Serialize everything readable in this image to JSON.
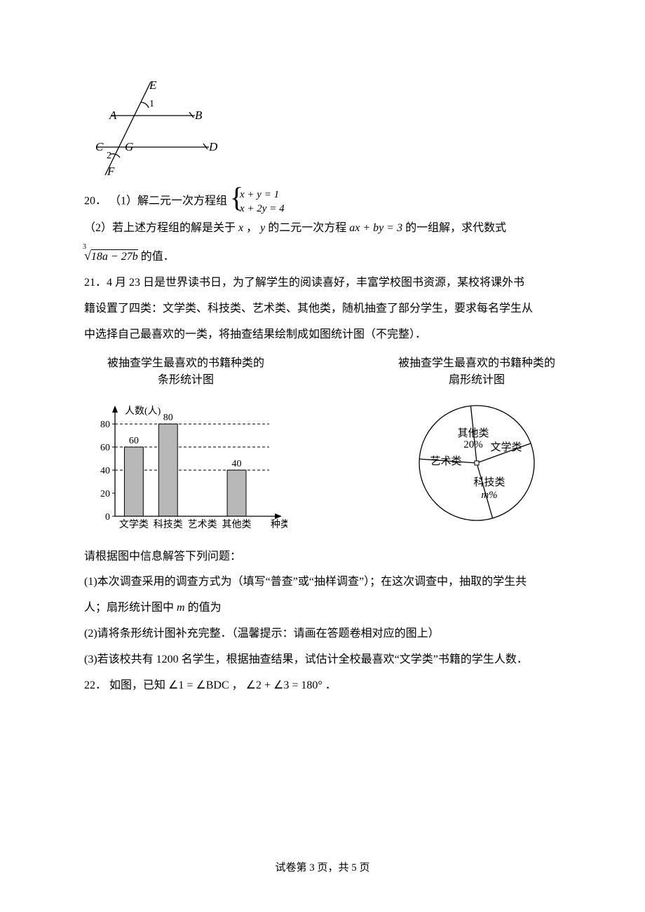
{
  "geom_top": {
    "labels": {
      "E": "E",
      "A": "A",
      "B": "B",
      "C": "C",
      "D": "D",
      "G": "G",
      "F": "F",
      "one": "1",
      "two": "2"
    },
    "stroke": "#000000",
    "stroke_width": 1.3
  },
  "q20": {
    "num": "20．",
    "part1_prefix": "（1）解二元一次方程组",
    "sys_row1": "x + y = 1",
    "sys_row2": "x + 2y = 4",
    "part2_prefix": "（2）若上述方程组的解是关于",
    "x": "x",
    "comma": "，",
    "y": "y",
    "part2_mid": "的二元一次方程",
    "eq": "ax + by = 3",
    "part2_suffix": "的一组解，求代数式",
    "root_idx": "3",
    "root_expr": "18a − 27b",
    "tail": " 的值．"
  },
  "q21": {
    "num": "21．",
    "intro1": "4 月 23 日是世界读书日，为了解学生的阅读喜好，丰富学校图书资源，某校将课外书",
    "intro2": "籍设置了四类：文学类、科技类、艺术类、其他类，随机抽查了部分学生，要求每名学生从",
    "intro3": "中选择自己最喜欢的一类，将抽查结果绘制成如图统计图（不完整）．",
    "bar_title_l1": "被抽查学生最喜欢的书籍种类的",
    "bar_title_l2": "条形统计图",
    "pie_title_l1": "被抽查学生最喜欢的书籍种类的",
    "pie_title_l2": "扇形统计图",
    "bar_chart": {
      "type": "bar",
      "ylabel": "人数(人)",
      "xlabel_suffix": "种类",
      "categories": [
        "文学类",
        "科技类",
        "艺术类",
        "其他类"
      ],
      "values": [
        60,
        80,
        null,
        40
      ],
      "value_labels": [
        "60",
        "80",
        "",
        "40"
      ],
      "yticks": [
        0,
        20,
        40,
        60,
        80
      ],
      "ylim": [
        0,
        85
      ],
      "bar_color": "#b8b8b8",
      "bar_border": "#000000",
      "axis_color": "#000000",
      "grid_dash": "4,3",
      "background": "#ffffff",
      "font_size": 14
    },
    "pie_chart": {
      "type": "pie",
      "stroke": "#000000",
      "fill": "#ffffff",
      "slices": [
        {
          "label": "其他类",
          "sub": "20%"
        },
        {
          "label": "文学类"
        },
        {
          "label": "艺术类"
        },
        {
          "label": "科技类",
          "sub": "m%"
        }
      ],
      "center_marker": true,
      "font_size": 15
    },
    "after": "请根据图中信息解答下列问题：",
    "p1a": "(1)本次调查采用的调查方式为（填写“普查”或“抽样调查”）；在这次调查中，抽取的学生共",
    "p1b": "人；扇形统计图中",
    "m": "m",
    "p1c": "的值为",
    "p2": "(2)请将条形统计图补充完整．（温馨提示：请画在答题卷相对应的图上）",
    "p3": "(3)若该校共有 1200 名学生，根据抽查结果，试估计全校最喜欢“文学类”书籍的学生人数．"
  },
  "q22": {
    "num": "22．",
    "prefix": "如图，已知",
    "eq1": "∠1 = ∠BDC",
    "mid": "，",
    "eq2": "∠2 + ∠3 = 180°",
    "suffix": "．"
  },
  "footer": "试卷第 3 页，共 5 页"
}
